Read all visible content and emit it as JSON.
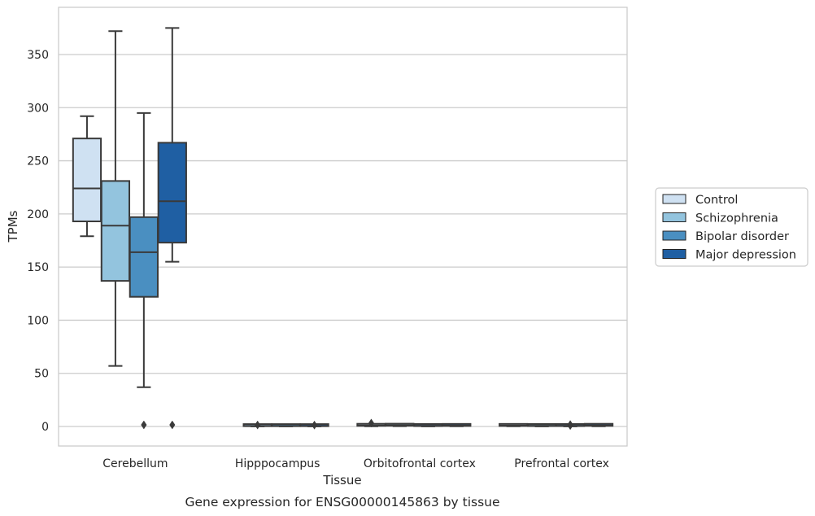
{
  "chart_data": {
    "type": "box",
    "caption": "Gene expression for ENSG00000145863 by tissue",
    "xlabel": "Tissue",
    "ylabel": "TPMs",
    "ylim": [
      -18,
      395
    ],
    "yticks": [
      0,
      50,
      100,
      150,
      200,
      250,
      300,
      350
    ],
    "grid": "horizontal",
    "legend_position": "right",
    "categories": [
      "Cerebellum",
      "Hipppocampus",
      "Orbitofrontal cortex",
      "Prefrontal cortex"
    ],
    "series": [
      {
        "name": "Control",
        "color": "#cfe1f2",
        "boxes": [
          {
            "whisker_low": 179,
            "q1": 193,
            "median": 224,
            "q3": 271,
            "whisker_high": 292,
            "outliers": []
          },
          null,
          {
            "whisker_low": 0.2,
            "q1": 0.6,
            "median": 1.0,
            "q3": 1.6,
            "whisker_high": 2.2,
            "outliers": [
              3.2
            ]
          },
          {
            "whisker_low": 0.2,
            "q1": 0.5,
            "median": 0.9,
            "q3": 1.4,
            "whisker_high": 1.9,
            "outliers": []
          }
        ]
      },
      {
        "name": "Schizophrenia",
        "color": "#93c4de",
        "boxes": [
          {
            "whisker_low": 57,
            "q1": 137,
            "median": 189,
            "q3": 231,
            "whisker_high": 372,
            "outliers": []
          },
          {
            "whisker_low": 0.1,
            "q1": 0.3,
            "median": 0.5,
            "q3": 0.7,
            "whisker_high": 1.0,
            "outliers": [
              1.4
            ]
          },
          {
            "whisker_low": 0.3,
            "q1": 0.7,
            "median": 1.1,
            "q3": 1.6,
            "whisker_high": 2.1,
            "outliers": []
          },
          {
            "whisker_low": 0.1,
            "q1": 0.4,
            "median": 0.7,
            "q3": 1.1,
            "whisker_high": 1.5,
            "outliers": []
          }
        ]
      },
      {
        "name": "Bipolar disorder",
        "color": "#4a8fc1",
        "boxes": [
          {
            "whisker_low": 37,
            "q1": 122,
            "median": 164,
            "q3": 197,
            "whisker_high": 295,
            "outliers": [
              1.5
            ]
          },
          {
            "whisker_low": 0.1,
            "q1": 0.3,
            "median": 0.5,
            "q3": 0.7,
            "whisker_high": 1.0,
            "outliers": []
          },
          {
            "whisker_low": 0.1,
            "q1": 0.4,
            "median": 0.7,
            "q3": 1.1,
            "whisker_high": 1.5,
            "outliers": []
          },
          {
            "whisker_low": 0.1,
            "q1": 0.4,
            "median": 0.7,
            "q3": 1.1,
            "whisker_high": 1.5,
            "outliers": [
              0.9,
              1.8
            ]
          }
        ]
      },
      {
        "name": "Major depression",
        "color": "#1f5fa3",
        "boxes": [
          {
            "whisker_low": 155,
            "q1": 173,
            "median": 212,
            "q3": 267,
            "whisker_high": 375,
            "outliers": [
              1.5
            ]
          },
          {
            "whisker_low": 0.1,
            "q1": 0.3,
            "median": 0.5,
            "q3": 0.7,
            "whisker_high": 1.0,
            "outliers": [
              1.3
            ]
          },
          {
            "whisker_low": 0.2,
            "q1": 0.5,
            "median": 0.9,
            "q3": 1.5,
            "whisker_high": 2.3,
            "outliers": []
          },
          {
            "whisker_low": 0.2,
            "q1": 0.6,
            "median": 1.0,
            "q3": 1.5,
            "whisker_high": 2.0,
            "outliers": []
          }
        ]
      }
    ]
  }
}
